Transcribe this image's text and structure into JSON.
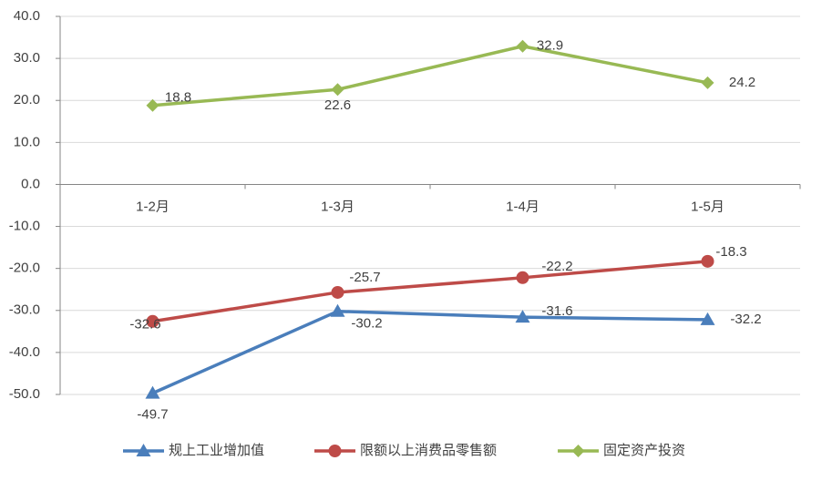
{
  "chart_data": {
    "type": "line",
    "categories": [
      "1-2月",
      "1-3月",
      "1-4月",
      "1-5月"
    ],
    "series": [
      {
        "name": "规上工业增加值",
        "color": "#4a7ebb",
        "marker": "triangle",
        "values": [
          -49.7,
          -30.2,
          -31.6,
          -32.2
        ]
      },
      {
        "name": "限额以上消费品零售额",
        "color": "#be4b48",
        "marker": "circle",
        "values": [
          -32.6,
          -25.7,
          -22.2,
          -18.3
        ]
      },
      {
        "name": "固定资产投资",
        "color": "#98b954",
        "marker": "diamond",
        "values": [
          18.8,
          22.6,
          32.9,
          24.2
        ]
      }
    ],
    "ylim": [
      -50,
      40
    ],
    "yticks": [
      {
        "value": -50,
        "label": "-50.0"
      },
      {
        "value": -40,
        "label": "-40.0"
      },
      {
        "value": -30,
        "label": "-30.0"
      },
      {
        "value": -20,
        "label": "-20.0"
      },
      {
        "value": -10,
        "label": "-10.0"
      },
      {
        "value": 0,
        "label": "0.0"
      },
      {
        "value": 10,
        "label": "10.0"
      },
      {
        "value": 20,
        "label": "20.0"
      },
      {
        "value": 30,
        "label": "30.0"
      },
      {
        "value": 40,
        "label": "40.0"
      }
    ],
    "grid": true,
    "legend": "bottom"
  }
}
